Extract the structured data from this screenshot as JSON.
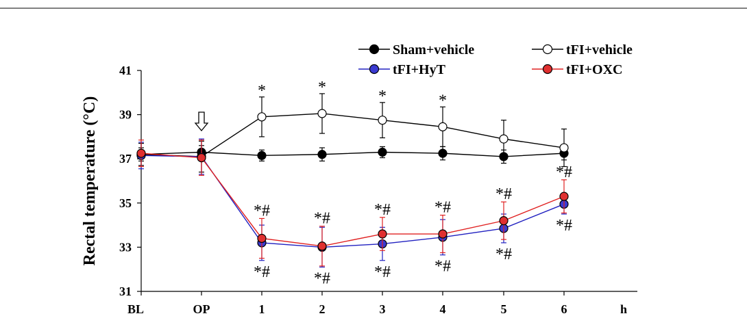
{
  "chart_data": {
    "type": "line",
    "title": "",
    "xlabel": "",
    "ylabel": "Rectal temperature (°C)",
    "x_unit_label": "h",
    "categories": [
      "BL",
      "OP",
      "1",
      "2",
      "3",
      "4",
      "5",
      "6"
    ],
    "ylim": [
      31,
      41
    ],
    "yticks": [
      31,
      33,
      35,
      37,
      39,
      41
    ],
    "grid": false,
    "legend_position": "top",
    "series": [
      {
        "name": "Sham+vehicle",
        "color": "#000000",
        "marker_fill": "#000000",
        "values": [
          37.2,
          37.3,
          37.15,
          37.2,
          37.3,
          37.25,
          37.1,
          37.25
        ],
        "errors": [
          0.3,
          0.3,
          0.25,
          0.3,
          0.25,
          0.3,
          0.3,
          0.3
        ]
      },
      {
        "name": "tFI+vehicle",
        "color": "#000000",
        "marker_fill": "#ffffff",
        "values": [
          37.2,
          37.1,
          38.9,
          39.05,
          38.75,
          38.45,
          37.9,
          37.5
        ],
        "errors": [
          0.5,
          0.7,
          0.9,
          0.9,
          0.8,
          0.9,
          0.85,
          0.85
        ]
      },
      {
        "name": "tFI+HyT",
        "color": "#2020c0",
        "marker_fill": "#3a3ad0",
        "values": [
          37.15,
          37.1,
          33.2,
          33.0,
          33.15,
          33.45,
          33.85,
          34.95
        ],
        "errors": [
          0.6,
          0.8,
          0.8,
          0.9,
          0.75,
          0.8,
          0.65,
          0.45
        ]
      },
      {
        "name": "tFI+OXC",
        "color": "#e02020",
        "marker_fill": "#e03030",
        "values": [
          37.25,
          37.05,
          33.4,
          33.05,
          33.6,
          33.6,
          34.2,
          35.3
        ],
        "errors": [
          0.6,
          0.8,
          0.9,
          0.9,
          0.75,
          0.85,
          0.85,
          0.75
        ]
      }
    ],
    "annotations": {
      "op_arrow_at": "OP",
      "star_above_tFI_vehicle": [
        "1",
        "2",
        "3",
        "4"
      ],
      "star_hash_above_OXC": [
        "1",
        "2",
        "3",
        "4",
        "5",
        "6"
      ],
      "star_hash_below_HyT": [
        "1",
        "2",
        "3",
        "4",
        "5",
        "6"
      ],
      "star_symbol": "*",
      "star_hash_symbol": "*#"
    }
  }
}
